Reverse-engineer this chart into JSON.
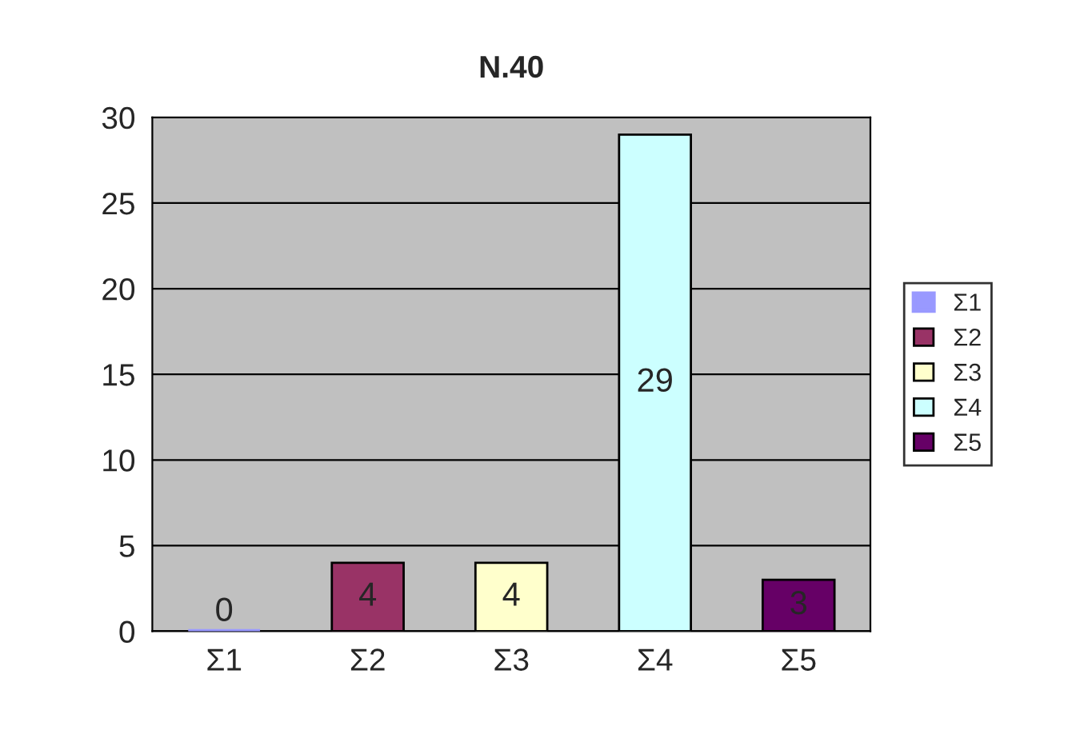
{
  "chart_data": {
    "type": "bar",
    "title": "N.40",
    "categories": [
      "Σ1",
      "Σ2",
      "Σ3",
      "Σ4",
      "Σ5"
    ],
    "series": [
      {
        "name": "Σ1",
        "color": "#9999ff",
        "values": [
          0,
          null,
          null,
          null,
          null
        ]
      },
      {
        "name": "Σ2",
        "color": "#993366",
        "values": [
          null,
          4,
          null,
          null,
          null
        ]
      },
      {
        "name": "Σ3",
        "color": "#ffffcc",
        "values": [
          null,
          null,
          4,
          null,
          null
        ]
      },
      {
        "name": "Σ4",
        "color": "#ccffff",
        "values": [
          null,
          null,
          null,
          29,
          null
        ]
      },
      {
        "name": "Σ5",
        "color": "#660066",
        "values": [
          null,
          null,
          null,
          null,
          3
        ]
      }
    ],
    "ylim": [
      0,
      30
    ],
    "yticks": [
      0,
      5,
      10,
      15,
      20,
      25,
      30
    ],
    "grid": "y",
    "legend": "right",
    "data_labels": true
  }
}
